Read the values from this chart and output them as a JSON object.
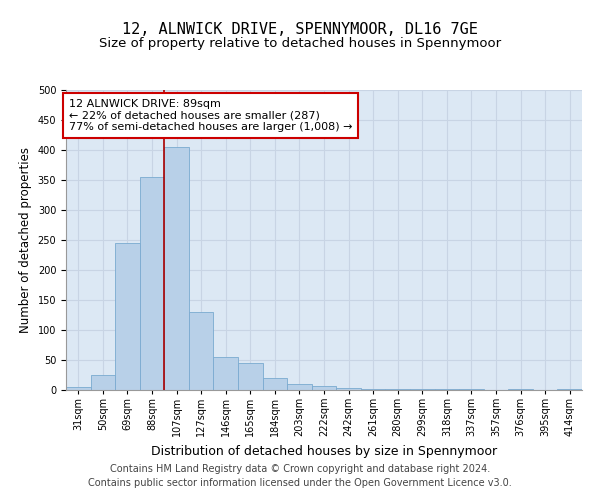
{
  "title": "12, ALNWICK DRIVE, SPENNYMOOR, DL16 7GE",
  "subtitle": "Size of property relative to detached houses in Spennymoor",
  "xlabel": "Distribution of detached houses by size in Spennymoor",
  "ylabel": "Number of detached properties",
  "categories": [
    "31sqm",
    "50sqm",
    "69sqm",
    "88sqm",
    "107sqm",
    "127sqm",
    "146sqm",
    "165sqm",
    "184sqm",
    "203sqm",
    "222sqm",
    "242sqm",
    "261sqm",
    "280sqm",
    "299sqm",
    "318sqm",
    "337sqm",
    "357sqm",
    "376sqm",
    "395sqm",
    "414sqm"
  ],
  "values": [
    5,
    25,
    245,
    355,
    405,
    130,
    55,
    45,
    20,
    10,
    7,
    3,
    2,
    2,
    2,
    2,
    1,
    0,
    1,
    0,
    1
  ],
  "bar_color": "#b8d0e8",
  "bar_edge_color": "#7aaad0",
  "vline_color": "#aa0000",
  "annotation_text": "12 ALNWICK DRIVE: 89sqm\n← 22% of detached houses are smaller (287)\n77% of semi-detached houses are larger (1,008) →",
  "annotation_box_color": "#ffffff",
  "annotation_box_edge": "#cc0000",
  "ylim": [
    0,
    500
  ],
  "yticks": [
    0,
    50,
    100,
    150,
    200,
    250,
    300,
    350,
    400,
    450,
    500
  ],
  "grid_color": "#c8d4e4",
  "bg_color": "#dce8f4",
  "footer": "Contains HM Land Registry data © Crown copyright and database right 2024.\nContains public sector information licensed under the Open Government Licence v3.0.",
  "title_fontsize": 11,
  "subtitle_fontsize": 9.5,
  "tick_fontsize": 7,
  "xlabel_fontsize": 9,
  "ylabel_fontsize": 8.5,
  "footer_fontsize": 7,
  "vline_index": 3.5
}
